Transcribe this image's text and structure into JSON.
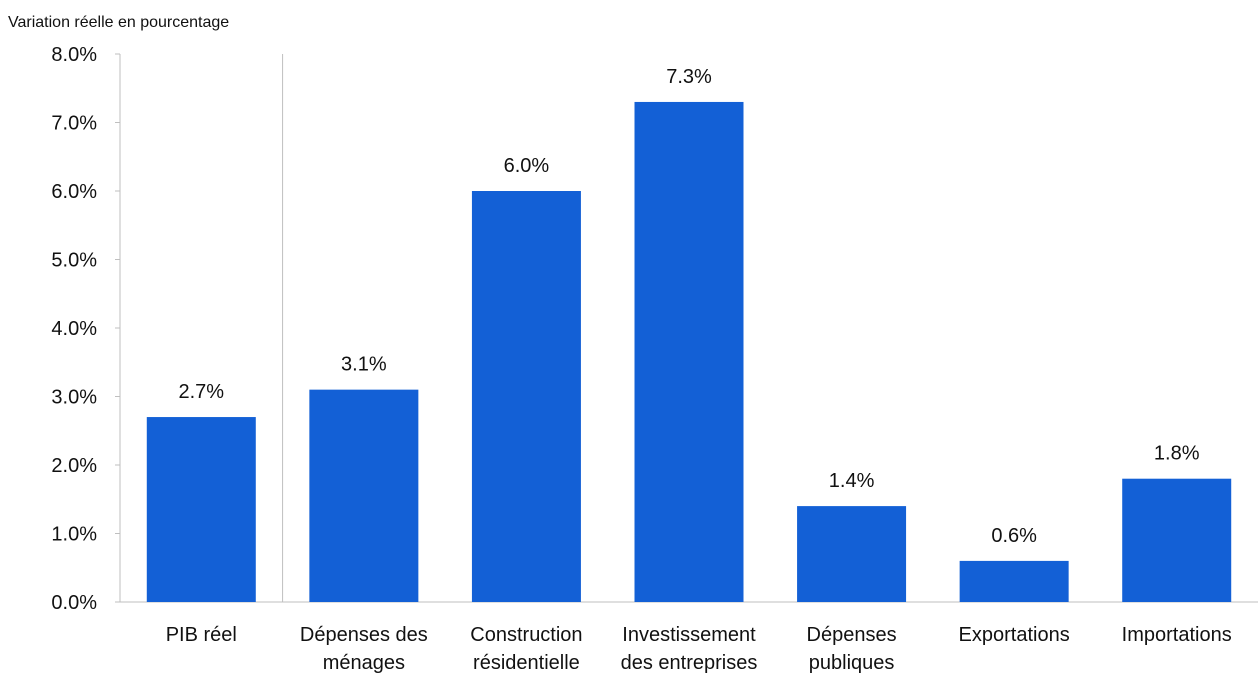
{
  "chart_data": {
    "type": "bar",
    "ylabel": "Variation réelle en pourcentage",
    "categories": [
      [
        "PIB réel"
      ],
      [
        "Dépenses des",
        "ménages"
      ],
      [
        "Construction",
        "résidentielle"
      ],
      [
        "Investissement",
        "des entreprises"
      ],
      [
        "Dépenses",
        "publiques"
      ],
      [
        "Exportations"
      ],
      [
        "Importations"
      ]
    ],
    "values": [
      2.7,
      3.1,
      6.0,
      7.3,
      1.4,
      0.6,
      1.8
    ],
    "data_labels": [
      "2.7%",
      "3.1%",
      "6.0%",
      "7.3%",
      "1.4%",
      "0.6%",
      "1.8%"
    ],
    "ylim": [
      0,
      8
    ],
    "yticks": [
      0,
      1,
      2,
      3,
      4,
      5,
      6,
      7,
      8
    ],
    "ytick_labels": [
      "0.0%",
      "1.0%",
      "2.0%",
      "3.0%",
      "4.0%",
      "5.0%",
      "6.0%",
      "7.0%",
      "8.0%"
    ],
    "bar_color": "#1360D6",
    "grid": false,
    "separator_after_category_index": 0
  }
}
